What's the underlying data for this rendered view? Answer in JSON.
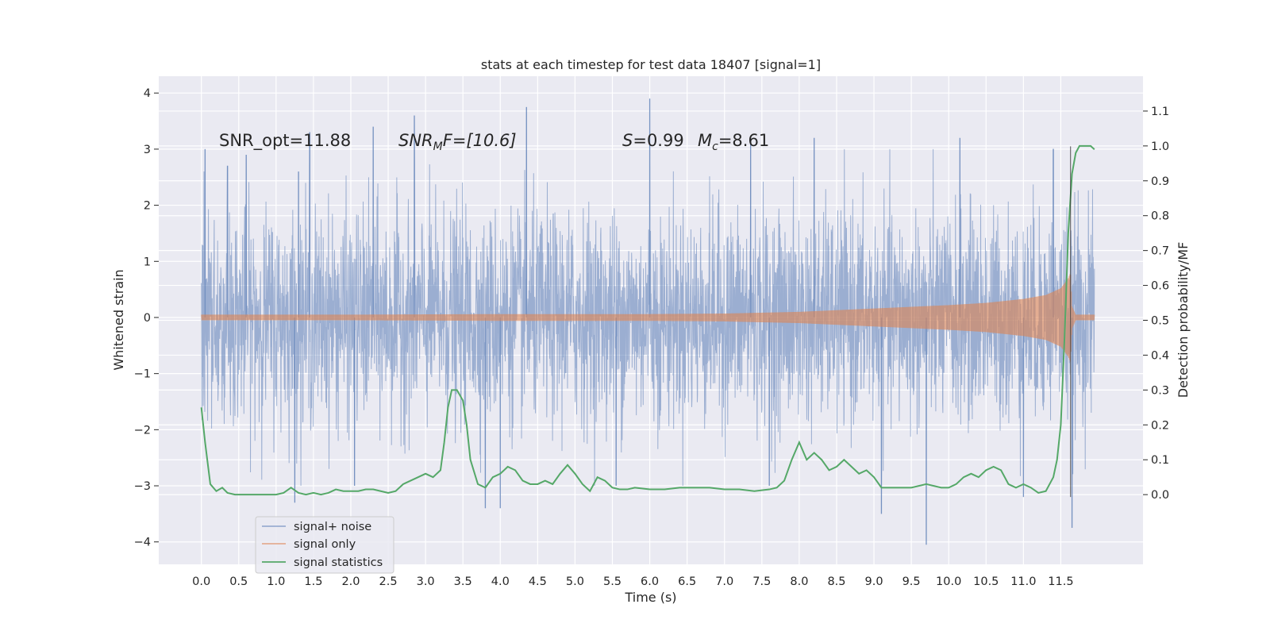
{
  "chart_data": {
    "type": "line",
    "title": "stats at each timestep for test data 18407 [signal=1]",
    "xlabel": "Time (s)",
    "ylabel_left": "Whitened strain",
    "ylabel_right": "Detection probability/MF",
    "xlim": [
      -0.57,
      12.6
    ],
    "ylim_left": [
      -4.4,
      4.3
    ],
    "ylim_right": [
      -0.2,
      1.2
    ],
    "x_ticks": [
      "0.0",
      "0.5",
      "1.0",
      "1.5",
      "2.0",
      "2.5",
      "3.0",
      "3.5",
      "4.0",
      "4.5",
      "5.0",
      "5.5",
      "6.0",
      "6.5",
      "7.0",
      "7.5",
      "8.0",
      "8.5",
      "9.0",
      "9.5",
      "10.0",
      "10.5",
      "11.0",
      "11.5"
    ],
    "y_ticks_left": [
      "4",
      "3",
      "2",
      "1",
      "0",
      "−1",
      "−2",
      "−3",
      "−4"
    ],
    "y_ticks_right": [
      "1.1",
      "1.0",
      "0.9",
      "0.8",
      "0.7",
      "0.6",
      "0.5",
      "0.4",
      "0.3",
      "0.2",
      "0.1",
      "0.0"
    ],
    "grid": true,
    "legend_position": "lower-left",
    "annotations": [
      "SNR_opt=11.88",
      "SNR_MF=[10.6]",
      "S=0.99",
      "M_c=8.61"
    ],
    "merger_time": 11.63,
    "colors": {
      "noise": "#4c72b0",
      "signal": "#dd8452",
      "stats": "#55a868",
      "background": "#eaeaf2",
      "grid": "#ffffff"
    },
    "series": [
      {
        "name": "signal+ noise",
        "axis": "left",
        "x_range": [
          0.0,
          11.95
        ],
        "envelope_typical": 2.2,
        "spikes": [
          {
            "x": 0.05,
            "y": 3.0
          },
          {
            "x": 0.35,
            "y": 2.7
          },
          {
            "x": 0.6,
            "y": 2.9
          },
          {
            "x": 1.3,
            "y": 2.6
          },
          {
            "x": 1.45,
            "y": 3.3
          },
          {
            "x": 2.3,
            "y": 3.4
          },
          {
            "x": 2.85,
            "y": 3.6
          },
          {
            "x": 4.35,
            "y": 3.75
          },
          {
            "x": 6.0,
            "y": 3.9
          },
          {
            "x": 7.35,
            "y": 3.2
          },
          {
            "x": 8.2,
            "y": 3.2
          },
          {
            "x": 10.15,
            "y": 3.2
          },
          {
            "x": 11.4,
            "y": 3.0
          },
          {
            "x": 1.25,
            "y": -3.3
          },
          {
            "x": 3.8,
            "y": -3.4
          },
          {
            "x": 4.0,
            "y": -3.4
          },
          {
            "x": 9.1,
            "y": -3.5
          },
          {
            "x": 9.7,
            "y": -4.05
          },
          {
            "x": 11.0,
            "y": -3.2
          },
          {
            "x": 11.65,
            "y": -3.75
          },
          {
            "x": 2.05,
            "y": -3.0
          },
          {
            "x": 5.55,
            "y": -3.0
          },
          {
            "x": 7.6,
            "y": -3.0
          }
        ]
      },
      {
        "name": "signal only",
        "axis": "left",
        "x": [
          0.0,
          2.0,
          4.0,
          6.0,
          7.0,
          8.0,
          9.0,
          10.0,
          10.5,
          11.0,
          11.3,
          11.5,
          11.6,
          11.63,
          11.65,
          11.7,
          11.95
        ],
        "amplitude": [
          0.05,
          0.05,
          0.06,
          0.06,
          0.07,
          0.1,
          0.16,
          0.22,
          0.26,
          0.33,
          0.4,
          0.52,
          0.7,
          0.8,
          0.2,
          0.05,
          0.05
        ]
      },
      {
        "name": "signal statistics",
        "axis": "right",
        "x": [
          0.0,
          0.05,
          0.12,
          0.2,
          0.28,
          0.35,
          0.45,
          0.55,
          0.7,
          0.85,
          1.0,
          1.1,
          1.2,
          1.3,
          1.4,
          1.5,
          1.6,
          1.7,
          1.8,
          1.9,
          2.0,
          2.1,
          2.2,
          2.3,
          2.4,
          2.5,
          2.6,
          2.7,
          2.8,
          2.9,
          3.0,
          3.1,
          3.2,
          3.25,
          3.3,
          3.35,
          3.42,
          3.5,
          3.55,
          3.6,
          3.7,
          3.8,
          3.9,
          4.0,
          4.1,
          4.2,
          4.3,
          4.4,
          4.5,
          4.6,
          4.7,
          4.8,
          4.9,
          5.0,
          5.1,
          5.2,
          5.3,
          5.4,
          5.5,
          5.6,
          5.7,
          5.8,
          6.0,
          6.2,
          6.4,
          6.6,
          6.8,
          7.0,
          7.2,
          7.4,
          7.6,
          7.7,
          7.8,
          7.9,
          8.0,
          8.1,
          8.2,
          8.3,
          8.4,
          8.5,
          8.6,
          8.7,
          8.8,
          8.9,
          9.0,
          9.1,
          9.2,
          9.3,
          9.5,
          9.7,
          9.9,
          10.0,
          10.1,
          10.2,
          10.3,
          10.4,
          10.5,
          10.6,
          10.7,
          10.8,
          10.9,
          11.0,
          11.1,
          11.2,
          11.3,
          11.4,
          11.45,
          11.5,
          11.55,
          11.6,
          11.65,
          11.7,
          11.75,
          11.8,
          11.9,
          11.95
        ],
        "y": [
          0.25,
          0.15,
          0.03,
          0.01,
          0.02,
          0.005,
          0.0,
          0.0,
          0.0,
          0.0,
          0.0,
          0.005,
          0.02,
          0.005,
          0.0,
          0.005,
          0.0,
          0.005,
          0.015,
          0.01,
          0.01,
          0.01,
          0.015,
          0.015,
          0.01,
          0.005,
          0.01,
          0.03,
          0.04,
          0.05,
          0.06,
          0.05,
          0.07,
          0.15,
          0.25,
          0.3,
          0.3,
          0.27,
          0.2,
          0.1,
          0.03,
          0.02,
          0.05,
          0.06,
          0.08,
          0.07,
          0.04,
          0.03,
          0.03,
          0.04,
          0.03,
          0.06,
          0.085,
          0.06,
          0.03,
          0.01,
          0.05,
          0.04,
          0.02,
          0.015,
          0.015,
          0.02,
          0.015,
          0.015,
          0.02,
          0.02,
          0.02,
          0.015,
          0.015,
          0.01,
          0.015,
          0.02,
          0.04,
          0.1,
          0.15,
          0.1,
          0.12,
          0.1,
          0.07,
          0.08,
          0.1,
          0.08,
          0.06,
          0.07,
          0.05,
          0.02,
          0.02,
          0.02,
          0.02,
          0.03,
          0.02,
          0.02,
          0.03,
          0.05,
          0.06,
          0.05,
          0.07,
          0.08,
          0.07,
          0.03,
          0.02,
          0.03,
          0.02,
          0.005,
          0.01,
          0.05,
          0.1,
          0.2,
          0.45,
          0.75,
          0.92,
          0.98,
          1.0,
          1.0,
          1.0,
          0.99
        ]
      }
    ]
  },
  "legend": {
    "items": [
      {
        "label": "signal+ noise",
        "color": "#4c72b0"
      },
      {
        "label": "signal only",
        "color": "#dd8452"
      },
      {
        "label": "signal statistics",
        "color": "#55a868"
      }
    ]
  },
  "annotations_text": {
    "snr_opt": "SNR_opt=11.88",
    "snr_mf_name": "SNR",
    "snr_mf_sub": "M",
    "snr_mf_rest": "F=[10.6]",
    "s_name": "S",
    "s_value": "=0.99",
    "mc_name": "M",
    "mc_sub": "c",
    "mc_value": "=8.61"
  }
}
